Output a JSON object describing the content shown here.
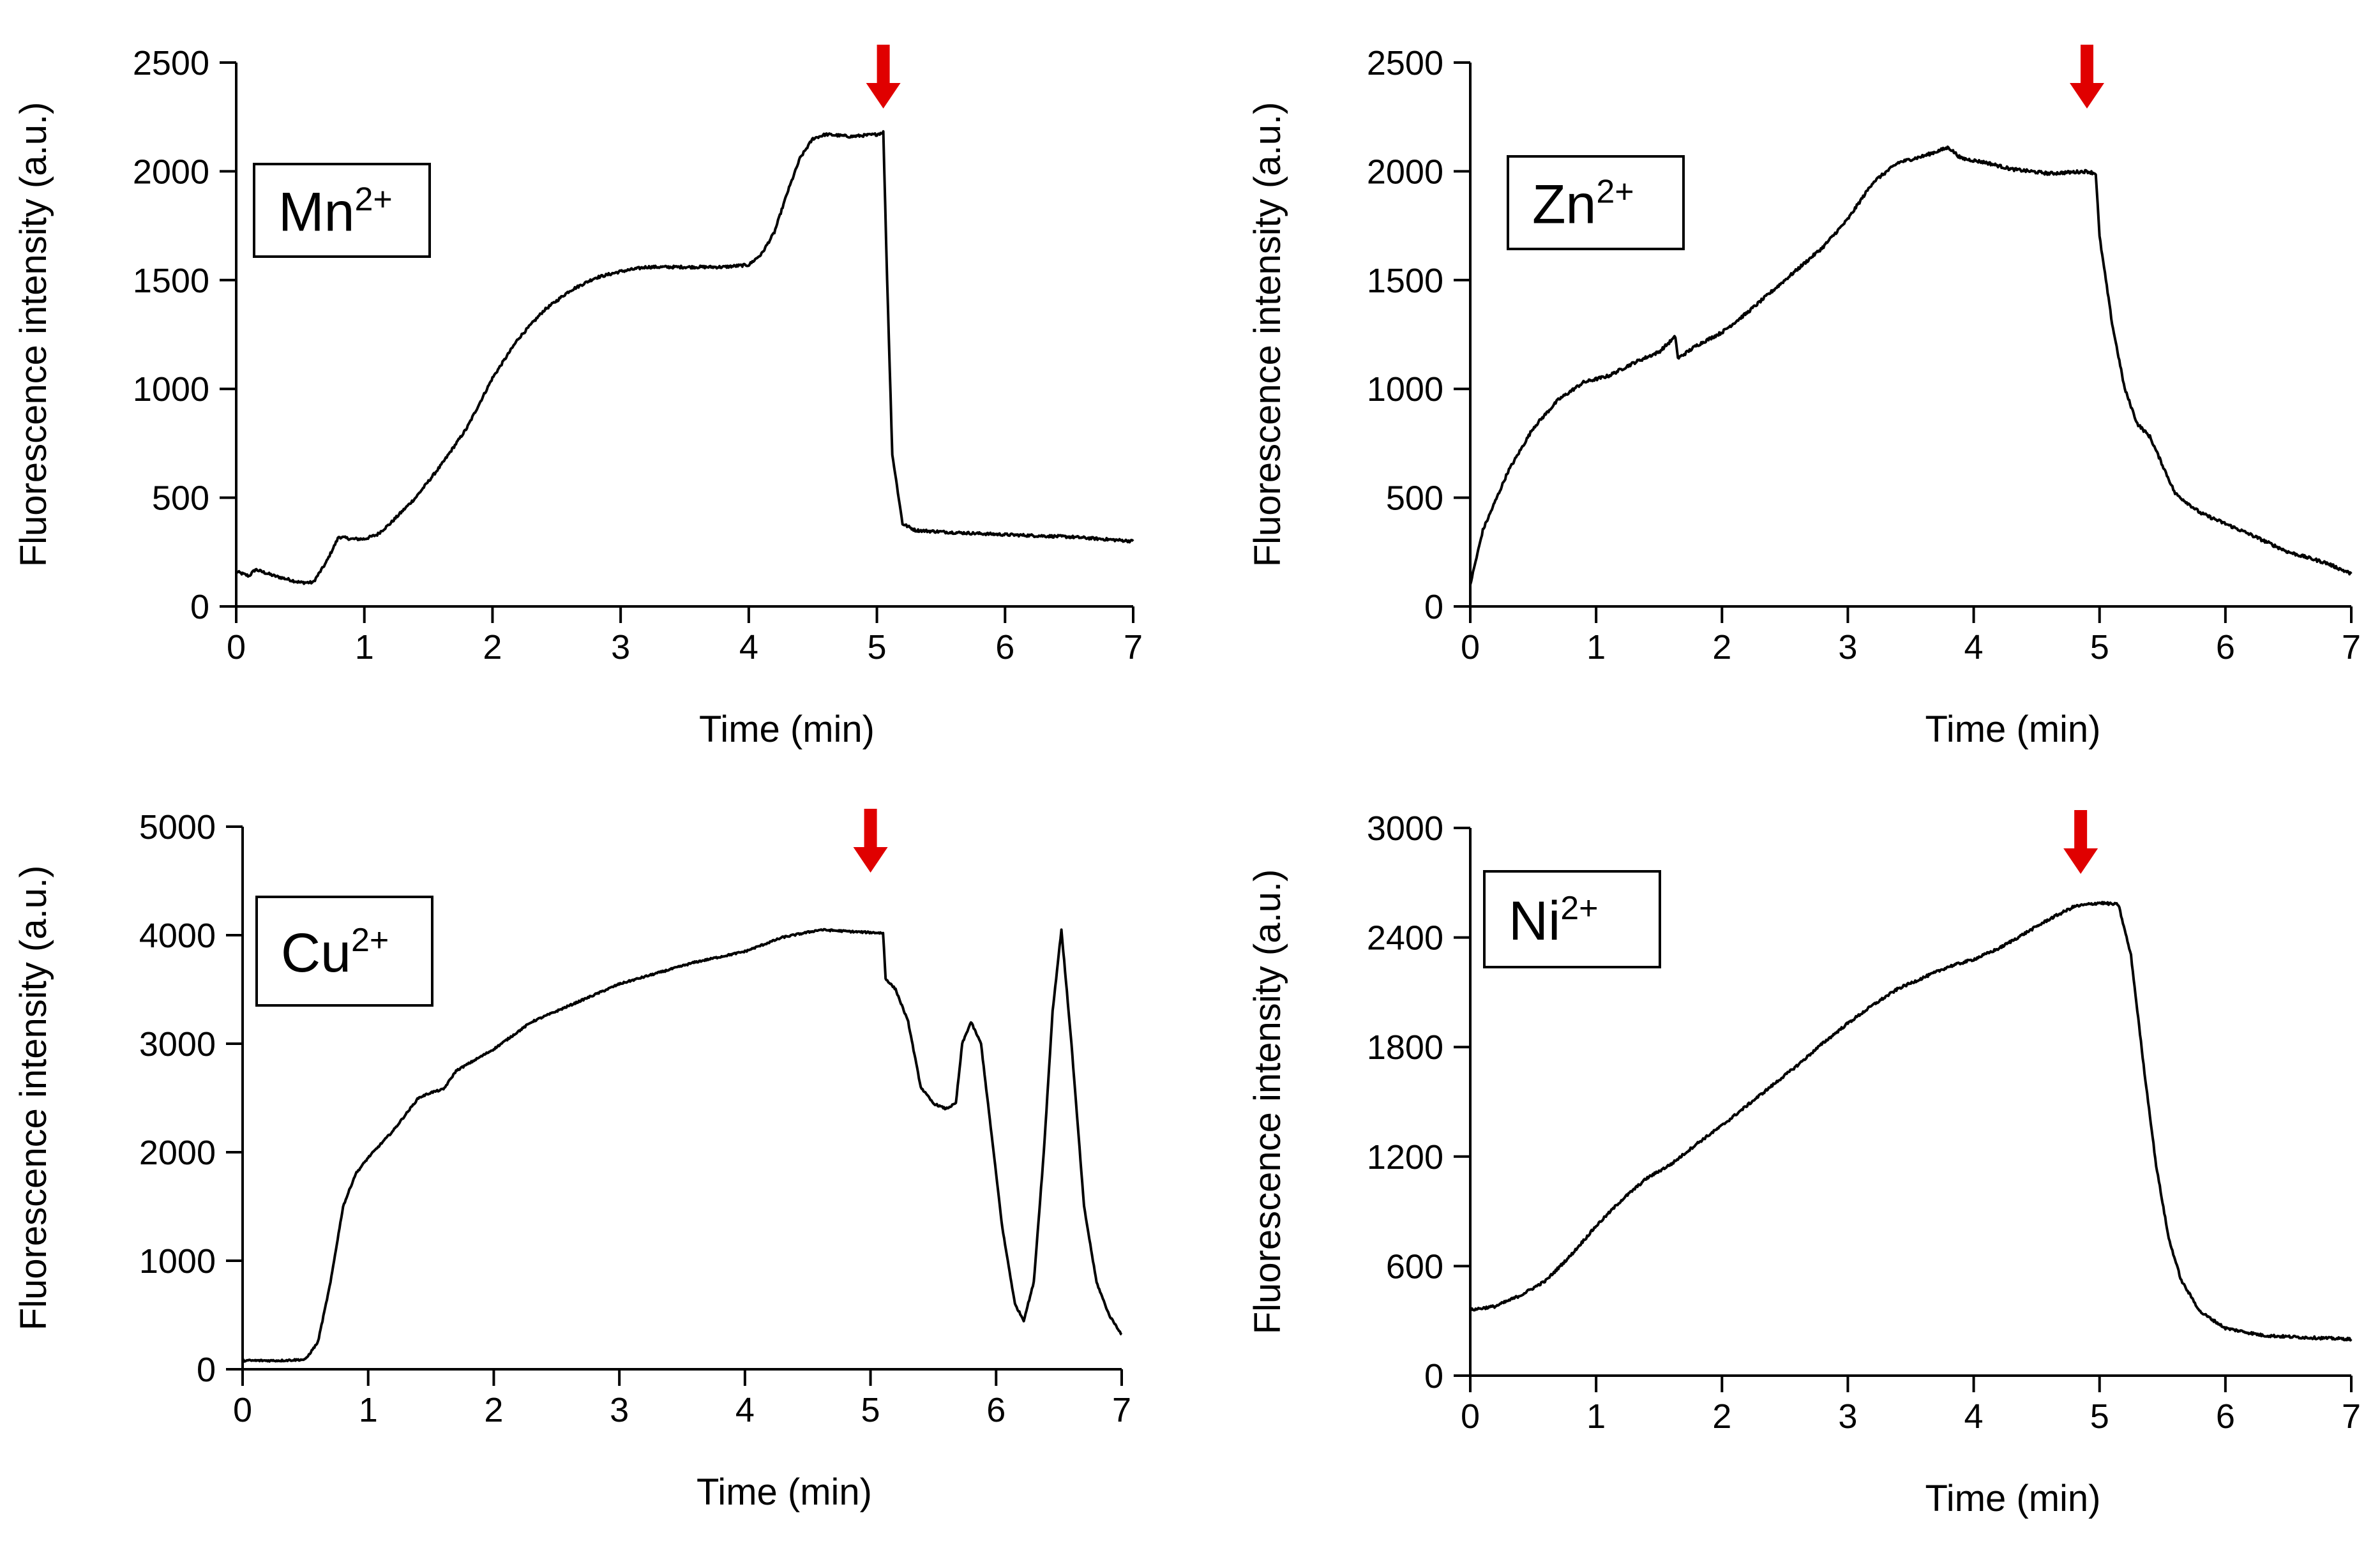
{
  "colors": {
    "line": "#000000",
    "arrow": "#e00000",
    "axis": "#000000"
  },
  "chart_data": [
    {
      "type": "line",
      "id": "mn",
      "label_base": "Mn",
      "label_sup": "2+",
      "xlabel": "Time (min)",
      "ylabel": "Fluorescence intensity (a.u.)",
      "xlim": [
        0,
        7
      ],
      "ylim": [
        0,
        2500
      ],
      "xticks": [
        0,
        1,
        2,
        3,
        4,
        5,
        6,
        7
      ],
      "yticks": [
        0,
        500,
        1000,
        1500,
        2000,
        2500
      ],
      "arrow_x": 5.05,
      "noise": 12,
      "series": [
        {
          "name": "Mn2+",
          "points": [
            [
              0,
              160
            ],
            [
              0.1,
              140
            ],
            [
              0.15,
              170
            ],
            [
              0.3,
              140
            ],
            [
              0.5,
              110
            ],
            [
              0.6,
              110
            ],
            [
              0.7,
              200
            ],
            [
              0.8,
              320
            ],
            [
              0.9,
              310
            ],
            [
              1.0,
              310
            ],
            [
              1.1,
              330
            ],
            [
              1.2,
              380
            ],
            [
              1.4,
              500
            ],
            [
              1.6,
              650
            ],
            [
              1.8,
              820
            ],
            [
              2.0,
              1050
            ],
            [
              2.2,
              1230
            ],
            [
              2.4,
              1360
            ],
            [
              2.6,
              1450
            ],
            [
              2.8,
              1510
            ],
            [
              3.0,
              1540
            ],
            [
              3.2,
              1560
            ],
            [
              3.5,
              1560
            ],
            [
              3.8,
              1560
            ],
            [
              4.0,
              1570
            ],
            [
              4.1,
              1620
            ],
            [
              4.2,
              1720
            ],
            [
              4.3,
              1900
            ],
            [
              4.4,
              2060
            ],
            [
              4.5,
              2150
            ],
            [
              4.6,
              2170
            ],
            [
              4.8,
              2160
            ],
            [
              5.0,
              2170
            ],
            [
              5.05,
              2180
            ],
            [
              5.08,
              1500
            ],
            [
              5.12,
              700
            ],
            [
              5.2,
              380
            ],
            [
              5.3,
              350
            ],
            [
              5.6,
              340
            ],
            [
              6.0,
              330
            ],
            [
              6.5,
              320
            ],
            [
              7.0,
              300
            ]
          ]
        }
      ]
    },
    {
      "type": "line",
      "id": "zn",
      "label_base": "Zn",
      "label_sup": "2+",
      "xlabel": "Time (min)",
      "ylabel": "Fluorescence intensity (a.u.)",
      "xlim": [
        0,
        7
      ],
      "ylim": [
        0,
        2500
      ],
      "xticks": [
        0,
        1,
        2,
        3,
        4,
        5,
        6,
        7
      ],
      "yticks": [
        0,
        500,
        1000,
        1500,
        2000,
        2500
      ],
      "arrow_x": 4.9,
      "noise": 14,
      "series": [
        {
          "name": "Zn2+",
          "points": [
            [
              0,
              100
            ],
            [
              0.1,
              350
            ],
            [
              0.3,
              620
            ],
            [
              0.5,
              820
            ],
            [
              0.7,
              950
            ],
            [
              0.9,
              1030
            ],
            [
              1.1,
              1060
            ],
            [
              1.3,
              1120
            ],
            [
              1.5,
              1170
            ],
            [
              1.63,
              1240
            ],
            [
              1.65,
              1140
            ],
            [
              1.8,
              1200
            ],
            [
              2.0,
              1260
            ],
            [
              2.2,
              1350
            ],
            [
              2.5,
              1500
            ],
            [
              2.8,
              1650
            ],
            [
              3.0,
              1780
            ],
            [
              3.2,
              1950
            ],
            [
              3.4,
              2040
            ],
            [
              3.6,
              2070
            ],
            [
              3.8,
              2110
            ],
            [
              3.9,
              2060
            ],
            [
              4.1,
              2040
            ],
            [
              4.3,
              2010
            ],
            [
              4.6,
              1990
            ],
            [
              4.9,
              2000
            ],
            [
              4.97,
              1990
            ],
            [
              5.0,
              1700
            ],
            [
              5.1,
              1300
            ],
            [
              5.2,
              1000
            ],
            [
              5.3,
              840
            ],
            [
              5.4,
              780
            ],
            [
              5.5,
              650
            ],
            [
              5.6,
              520
            ],
            [
              5.8,
              430
            ],
            [
              6.0,
              380
            ],
            [
              6.2,
              330
            ],
            [
              6.5,
              250
            ],
            [
              6.8,
              200
            ],
            [
              7.0,
              150
            ]
          ]
        }
      ]
    },
    {
      "type": "line",
      "id": "cu",
      "label_base": "Cu",
      "label_sup": "2+",
      "xlabel": "Time (min)",
      "ylabel": "Fluorescence intensity (a.u.)",
      "xlim": [
        0,
        7
      ],
      "ylim": [
        0,
        5000
      ],
      "xticks": [
        0,
        1,
        2,
        3,
        4,
        5,
        6,
        7
      ],
      "yticks": [
        0,
        1000,
        2000,
        3000,
        4000,
        5000
      ],
      "arrow_x": 5.0,
      "noise": 16,
      "series": [
        {
          "name": "Cu2+",
          "points": [
            [
              0,
              80
            ],
            [
              0.3,
              80
            ],
            [
              0.5,
              90
            ],
            [
              0.6,
              250
            ],
            [
              0.7,
              800
            ],
            [
              0.8,
              1500
            ],
            [
              0.9,
              1800
            ],
            [
              1.0,
              1950
            ],
            [
              1.2,
              2200
            ],
            [
              1.4,
              2500
            ],
            [
              1.5,
              2550
            ],
            [
              1.6,
              2580
            ],
            [
              1.7,
              2750
            ],
            [
              2.0,
              2950
            ],
            [
              2.3,
              3200
            ],
            [
              2.6,
              3350
            ],
            [
              3.0,
              3550
            ],
            [
              3.3,
              3650
            ],
            [
              3.6,
              3750
            ],
            [
              4.0,
              3850
            ],
            [
              4.3,
              3980
            ],
            [
              4.6,
              4050
            ],
            [
              4.9,
              4030
            ],
            [
              5.1,
              4020
            ],
            [
              5.12,
              3600
            ],
            [
              5.2,
              3500
            ],
            [
              5.3,
              3200
            ],
            [
              5.4,
              2600
            ],
            [
              5.5,
              2450
            ],
            [
              5.6,
              2400
            ],
            [
              5.68,
              2450
            ],
            [
              5.73,
              3000
            ],
            [
              5.8,
              3200
            ],
            [
              5.88,
              3000
            ],
            [
              5.95,
              2300
            ],
            [
              6.05,
              1300
            ],
            [
              6.15,
              600
            ],
            [
              6.22,
              450
            ],
            [
              6.3,
              800
            ],
            [
              6.38,
              2000
            ],
            [
              6.45,
              3300
            ],
            [
              6.52,
              4050
            ],
            [
              6.6,
              3000
            ],
            [
              6.7,
              1500
            ],
            [
              6.8,
              800
            ],
            [
              6.9,
              500
            ],
            [
              7.0,
              320
            ]
          ]
        }
      ]
    },
    {
      "type": "line",
      "id": "ni",
      "label_base": "Ni",
      "label_sup": "2+",
      "xlabel": "Time (min)",
      "ylabel": "Fluorescence intensity (a.u.)",
      "xlim": [
        0,
        7
      ],
      "ylim": [
        0,
        3000
      ],
      "xticks": [
        0,
        1,
        2,
        3,
        4,
        5,
        6,
        7
      ],
      "yticks": [
        0,
        600,
        1200,
        1800,
        2400,
        3000
      ],
      "arrow_x": 4.85,
      "noise": 14,
      "series": [
        {
          "name": "Ni2+",
          "points": [
            [
              0,
              360
            ],
            [
              0.2,
              380
            ],
            [
              0.4,
              440
            ],
            [
              0.6,
              520
            ],
            [
              0.8,
              660
            ],
            [
              1.0,
              820
            ],
            [
              1.2,
              960
            ],
            [
              1.4,
              1080
            ],
            [
              1.6,
              1160
            ],
            [
              1.8,
              1270
            ],
            [
              2.0,
              1370
            ],
            [
              2.2,
              1480
            ],
            [
              2.4,
              1590
            ],
            [
              2.6,
              1700
            ],
            [
              2.8,
              1820
            ],
            [
              3.0,
              1930
            ],
            [
              3.2,
              2030
            ],
            [
              3.4,
              2120
            ],
            [
              3.6,
              2180
            ],
            [
              3.8,
              2240
            ],
            [
              4.0,
              2280
            ],
            [
              4.2,
              2340
            ],
            [
              4.4,
              2420
            ],
            [
              4.6,
              2500
            ],
            [
              4.8,
              2570
            ],
            [
              5.0,
              2590
            ],
            [
              5.15,
              2580
            ],
            [
              5.25,
              2300
            ],
            [
              5.35,
              1700
            ],
            [
              5.45,
              1150
            ],
            [
              5.55,
              750
            ],
            [
              5.65,
              520
            ],
            [
              5.8,
              350
            ],
            [
              6.0,
              260
            ],
            [
              6.3,
              220
            ],
            [
              6.6,
              210
            ],
            [
              7.0,
              200
            ]
          ]
        }
      ]
    }
  ]
}
